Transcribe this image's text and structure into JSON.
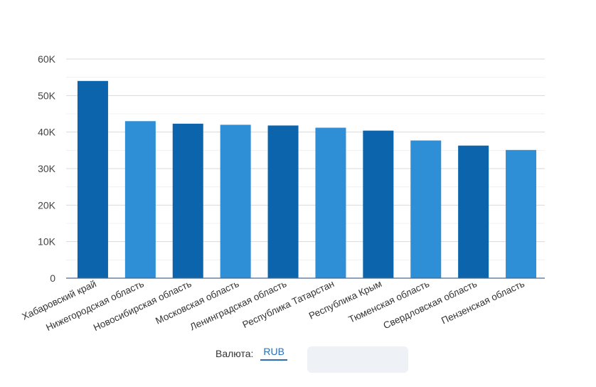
{
  "chart_data": {
    "type": "bar",
    "categories": [
      "Хабаровский край",
      "Нижегородская область",
      "Новосибирская область",
      "Московская область",
      "Ленинградская область",
      "Республика Татарстан",
      "Республика Крым",
      "Тюменская область",
      "Свердловская область",
      "Пензенская область"
    ],
    "values": [
      54000,
      43000,
      42300,
      42000,
      41800,
      41200,
      40400,
      37700,
      36300,
      35100
    ],
    "ylim": [
      0,
      60000
    ],
    "y_ticks": [
      0,
      10000,
      20000,
      30000,
      40000,
      50000,
      60000
    ],
    "y_tick_labels": [
      "0",
      "10K",
      "20K",
      "30K",
      "40K",
      "50K",
      "60K"
    ],
    "minor_grid": true,
    "grid": true,
    "colors": [
      "#0b64ac",
      "#2e8fd6"
    ]
  },
  "footer": {
    "currency_label": "Валюта:",
    "currency_value": "RUB"
  }
}
